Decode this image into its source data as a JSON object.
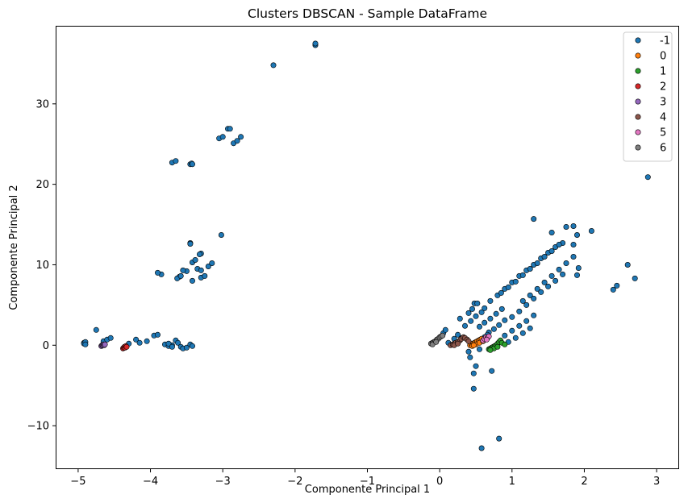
{
  "chart_data": {
    "type": "scatter",
    "title": "Clusters DBSCAN - Sample DataFrame",
    "xlabel": "Componente Principal 1",
    "ylabel": "Componente Principal 2",
    "xlim": [
      -5.3,
      3.3
    ],
    "ylim": [
      -15.3,
      39.6
    ],
    "xticks": [
      -5,
      -4,
      -3,
      -2,
      -1,
      0,
      1,
      2,
      3
    ],
    "xtick_labels": [
      "−5",
      "−4",
      "−3",
      "−2",
      "−1",
      "0",
      "1",
      "2",
      "3"
    ],
    "yticks": [
      -10,
      0,
      10,
      20,
      30
    ],
    "ytick_labels": [
      "−10",
      "0",
      "10",
      "20",
      "30"
    ],
    "grid": false,
    "legend_position": "top-right",
    "series": [
      {
        "name": "-1",
        "color": "#1f77b4",
        "points": [
          [
            -1.72,
            37.3
          ],
          [
            -1.72,
            37.5
          ],
          [
            -2.3,
            34.8
          ],
          [
            -3.05,
            25.7
          ],
          [
            -3.0,
            25.9
          ],
          [
            -2.93,
            26.9
          ],
          [
            -2.9,
            26.9
          ],
          [
            -2.85,
            25.1
          ],
          [
            -2.8,
            25.4
          ],
          [
            -2.75,
            25.9
          ],
          [
            -3.7,
            22.7
          ],
          [
            -3.65,
            22.9
          ],
          [
            -3.45,
            22.5
          ],
          [
            -3.43,
            22.6
          ],
          [
            -3.42,
            22.5
          ],
          [
            -3.02,
            13.7
          ],
          [
            -3.45,
            12.7
          ],
          [
            -3.45,
            12.6
          ],
          [
            -3.3,
            11.4
          ],
          [
            -3.32,
            11.3
          ],
          [
            -3.2,
            9.8
          ],
          [
            -3.15,
            10.2
          ],
          [
            -3.35,
            9.5
          ],
          [
            -3.3,
            9.3
          ],
          [
            -3.42,
            10.3
          ],
          [
            -3.38,
            10.6
          ],
          [
            -3.5,
            9.2
          ],
          [
            -3.55,
            9.3
          ],
          [
            -3.6,
            8.5
          ],
          [
            -3.63,
            8.3
          ],
          [
            -3.58,
            8.6
          ],
          [
            -3.42,
            8.0
          ],
          [
            -3.3,
            8.4
          ],
          [
            -3.25,
            8.6
          ],
          [
            -3.85,
            8.8
          ],
          [
            -3.9,
            9.0
          ],
          [
            -4.92,
            0.3
          ],
          [
            -4.92,
            0.2
          ],
          [
            -4.9,
            0.4
          ],
          [
            -4.9,
            0.1
          ],
          [
            -4.75,
            1.9
          ],
          [
            -4.65,
            0.5
          ],
          [
            -4.6,
            0.7
          ],
          [
            -4.55,
            0.9
          ],
          [
            -4.3,
            0.2
          ],
          [
            -4.2,
            0.7
          ],
          [
            -4.15,
            0.3
          ],
          [
            -4.05,
            0.5
          ],
          [
            -3.95,
            1.2
          ],
          [
            -3.9,
            1.3
          ],
          [
            -3.8,
            0.1
          ],
          [
            -3.75,
            -0.1
          ],
          [
            -3.7,
            0.0
          ],
          [
            -3.65,
            0.6
          ],
          [
            -3.62,
            0.3
          ],
          [
            -3.58,
            -0.2
          ],
          [
            -3.55,
            -0.4
          ],
          [
            -3.5,
            -0.3
          ],
          [
            -3.45,
            0.1
          ],
          [
            -3.42,
            -0.1
          ],
          [
            -3.75,
            0.2
          ],
          [
            -3.7,
            -0.2
          ],
          [
            0.05,
            1.5
          ],
          [
            0.08,
            1.9
          ],
          [
            0.12,
            0.3
          ],
          [
            0.2,
            0.8
          ],
          [
            0.25,
            1.3
          ],
          [
            0.3,
            0.9
          ],
          [
            0.35,
            2.4
          ],
          [
            0.28,
            3.3
          ],
          [
            0.4,
            4.0
          ],
          [
            0.45,
            4.5
          ],
          [
            0.48,
            5.2
          ],
          [
            0.52,
            5.2
          ],
          [
            0.43,
            3.0
          ],
          [
            0.5,
            3.6
          ],
          [
            0.58,
            4.1
          ],
          [
            0.62,
            4.6
          ],
          [
            0.55,
            2.3
          ],
          [
            0.62,
            2.8
          ],
          [
            0.7,
            3.3
          ],
          [
            0.78,
            3.9
          ],
          [
            0.86,
            4.5
          ],
          [
            0.68,
            1.6
          ],
          [
            0.75,
            2.0
          ],
          [
            0.82,
            2.5
          ],
          [
            0.9,
            3.1
          ],
          [
            0.7,
            5.5
          ],
          [
            0.8,
            6.2
          ],
          [
            0.9,
            7.0
          ],
          [
            1.0,
            7.8
          ],
          [
            1.1,
            8.6
          ],
          [
            1.2,
            9.3
          ],
          [
            1.3,
            10.0
          ],
          [
            1.4,
            10.8
          ],
          [
            1.5,
            11.5
          ],
          [
            1.6,
            12.2
          ],
          [
            1.7,
            12.7
          ],
          [
            1.85,
            12.5
          ],
          [
            1.75,
            14.7
          ],
          [
            0.85,
            6.5
          ],
          [
            0.95,
            7.2
          ],
          [
            1.05,
            7.9
          ],
          [
            1.15,
            8.7
          ],
          [
            1.25,
            9.5
          ],
          [
            1.35,
            10.2
          ],
          [
            1.45,
            11.0
          ],
          [
            1.55,
            11.7
          ],
          [
            1.65,
            12.5
          ],
          [
            1.3,
            15.7
          ],
          [
            1.55,
            14.0
          ],
          [
            1.85,
            14.8
          ],
          [
            1.9,
            13.7
          ],
          [
            2.1,
            14.2
          ],
          [
            1.15,
            5.5
          ],
          [
            1.25,
            6.2
          ],
          [
            1.35,
            7.0
          ],
          [
            1.45,
            7.8
          ],
          [
            1.55,
            8.6
          ],
          [
            1.65,
            9.4
          ],
          [
            1.75,
            10.2
          ],
          [
            1.85,
            11.0
          ],
          [
            1.0,
            3.5
          ],
          [
            1.1,
            4.2
          ],
          [
            1.2,
            5.0
          ],
          [
            1.3,
            5.8
          ],
          [
            1.4,
            6.6
          ],
          [
            1.5,
            7.3
          ],
          [
            1.6,
            8.0
          ],
          [
            1.7,
            8.8
          ],
          [
            1.92,
            9.6
          ],
          [
            1.9,
            8.7
          ],
          [
            0.9,
            1.2
          ],
          [
            1.0,
            1.8
          ],
          [
            1.1,
            2.4
          ],
          [
            1.2,
            3.0
          ],
          [
            1.3,
            3.7
          ],
          [
            0.95,
            0.4
          ],
          [
            1.05,
            0.9
          ],
          [
            1.15,
            1.5
          ],
          [
            1.25,
            2.1
          ],
          [
            0.5,
            -2.6
          ],
          [
            0.47,
            -3.5
          ],
          [
            0.47,
            -5.4
          ],
          [
            0.42,
            -1.5
          ],
          [
            0.4,
            -0.8
          ],
          [
            0.55,
            -0.5
          ],
          [
            0.72,
            -3.2
          ],
          [
            0.58,
            -12.8
          ],
          [
            0.82,
            -11.6
          ],
          [
            0.62,
            1.0
          ],
          [
            0.66,
            1.3
          ],
          [
            2.4,
            6.9
          ],
          [
            2.45,
            7.4
          ],
          [
            2.6,
            10.0
          ],
          [
            2.7,
            8.3
          ],
          [
            2.88,
            20.9
          ]
        ]
      },
      {
        "name": "0",
        "color": "#ff7f0e",
        "points": [
          [
            0.42,
            0.0
          ],
          [
            0.44,
            0.1
          ],
          [
            0.46,
            0.2
          ],
          [
            0.48,
            0.3
          ],
          [
            0.5,
            0.4
          ],
          [
            0.52,
            0.5
          ],
          [
            0.54,
            0.6
          ],
          [
            0.56,
            0.7
          ],
          [
            0.58,
            0.8
          ],
          [
            0.45,
            -0.1
          ],
          [
            0.5,
            0.1
          ],
          [
            0.55,
            0.3
          ],
          [
            0.6,
            0.5
          ],
          [
            0.47,
            0.0
          ]
        ]
      },
      {
        "name": "1",
        "color": "#2ca02c",
        "points": [
          [
            0.68,
            -0.5
          ],
          [
            0.7,
            -0.4
          ],
          [
            0.72,
            -0.3
          ],
          [
            0.74,
            -0.2
          ],
          [
            0.76,
            -0.1
          ],
          [
            0.78,
            0.0
          ],
          [
            0.8,
            0.2
          ],
          [
            0.82,
            0.4
          ],
          [
            0.84,
            0.6
          ],
          [
            0.86,
            0.3
          ],
          [
            0.75,
            -0.4
          ],
          [
            0.8,
            -0.2
          ],
          [
            0.9,
            0.1
          ],
          [
            0.7,
            -0.6
          ]
        ]
      },
      {
        "name": "2",
        "color": "#d62728",
        "points": [
          [
            -4.38,
            -0.4
          ],
          [
            -4.37,
            -0.3
          ],
          [
            -4.36,
            -0.2
          ],
          [
            -4.35,
            -0.3
          ],
          [
            -4.34,
            -0.1
          ],
          [
            -4.33,
            -0.2
          ]
        ]
      },
      {
        "name": "3",
        "color": "#9467bd",
        "points": [
          [
            -4.68,
            -0.1
          ],
          [
            -4.67,
            0.0
          ],
          [
            -4.66,
            0.0
          ],
          [
            -4.65,
            0.1
          ],
          [
            -4.64,
            0.0
          ],
          [
            -4.63,
            0.1
          ]
        ]
      },
      {
        "name": "4",
        "color": "#8c564b",
        "points": [
          [
            0.15,
            0.0
          ],
          [
            0.18,
            0.1
          ],
          [
            0.2,
            0.2
          ],
          [
            0.22,
            0.3
          ],
          [
            0.25,
            0.4
          ],
          [
            0.28,
            0.6
          ],
          [
            0.3,
            0.8
          ],
          [
            0.33,
            1.0
          ],
          [
            0.35,
            0.9
          ],
          [
            0.38,
            0.7
          ],
          [
            0.4,
            0.5
          ],
          [
            0.2,
            0.0
          ],
          [
            0.25,
            0.2
          ]
        ]
      },
      {
        "name": "5",
        "color": "#e377c2",
        "points": [
          [
            0.6,
            0.6
          ],
          [
            0.62,
            0.8
          ],
          [
            0.64,
            1.0
          ],
          [
            0.66,
            0.9
          ],
          [
            0.68,
            1.1
          ],
          [
            0.65,
            0.7
          ]
        ]
      },
      {
        "name": "6",
        "color": "#7f7f7f",
        "points": [
          [
            -0.12,
            0.2
          ],
          [
            -0.1,
            0.3
          ],
          [
            -0.08,
            0.4
          ],
          [
            -0.06,
            0.5
          ],
          [
            -0.04,
            0.7
          ],
          [
            -0.02,
            0.8
          ],
          [
            0.0,
            1.0
          ],
          [
            0.02,
            1.1
          ],
          [
            0.04,
            1.2
          ],
          [
            -0.1,
            0.1
          ],
          [
            -0.05,
            0.4
          ]
        ]
      }
    ]
  }
}
